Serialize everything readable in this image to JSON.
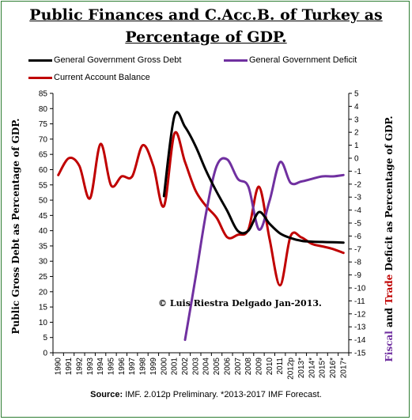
{
  "title_line1": "Public Finances and C.Acc.B. of Turkey as",
  "title_line2": "Percentage of GDP.",
  "ylabel_left": "Public Gross Debt as Percentage of GDP.",
  "ylabel_right": {
    "part1": "Fiscal",
    "part2": " and ",
    "part3": "Trade",
    "part4": " Deficit as Percentage of GDP.",
    "color1": "#7030a0",
    "color3": "#c00000"
  },
  "copyright": "© Luis Riestra Delgado Jan-2013.",
  "source": {
    "label": "Source:",
    "text": " IMF. 2.012p  Preliminary. *2013-2017  IMF Forecast."
  },
  "legend": [
    {
      "label": "General Government Gross Debt",
      "color": "#000000"
    },
    {
      "label": "General Government Deficit",
      "color": "#7030a0"
    },
    {
      "label": "Current Account Balance",
      "color": "#c00000"
    }
  ],
  "chart_data": {
    "type": "line",
    "x": [
      "1990",
      "1991",
      "1992",
      "1993",
      "1994",
      "1995",
      "1996",
      "1997",
      "1998",
      "1999",
      "2000",
      "2001",
      "2002",
      "2003",
      "2004",
      "2005",
      "2006",
      "2007",
      "2008",
      "2009",
      "2010",
      "2011",
      "2012p",
      "2013*",
      "2014*",
      "2015*",
      "2016*",
      "2017*"
    ],
    "y_left": {
      "min": 0,
      "max": 85,
      "step": 5
    },
    "y_right": {
      "min": -15,
      "max": 5,
      "step": 1
    },
    "grid": false,
    "legend_position": "top",
    "series": [
      {
        "name": "General Government Gross Debt",
        "axis": "left",
        "color": "#000000",
        "values": [
          null,
          null,
          null,
          null,
          null,
          null,
          null,
          null,
          null,
          null,
          51.3,
          77.6,
          74,
          67.7,
          59.6,
          52.7,
          46.5,
          39.9,
          40,
          46.1,
          42.3,
          39.1,
          37.6,
          36.7,
          36.4,
          36.3,
          36.2,
          36.1
        ]
      },
      {
        "name": "General Government Deficit",
        "axis": "right",
        "color": "#7030a0",
        "values": [
          null,
          null,
          null,
          null,
          null,
          null,
          null,
          null,
          null,
          null,
          null,
          null,
          -14,
          -9.2,
          -4.2,
          -0.6,
          -0.1,
          -1.6,
          -2.2,
          -5.5,
          -3.3,
          -0.3,
          -1.9,
          -1.8,
          -1.6,
          -1.4,
          -1.4,
          -1.3
        ]
      },
      {
        "name": "Current Account Balance",
        "axis": "right",
        "color": "#c00000",
        "values": [
          -1.3,
          0,
          -0.6,
          -3.1,
          1.1,
          -2.1,
          -1.4,
          -1.4,
          1,
          -0.6,
          -3.7,
          1.9,
          -0.3,
          -2.5,
          -3.7,
          -4.6,
          -6.1,
          -5.9,
          -5.5,
          -2.2,
          -6.2,
          -9.8,
          -6,
          -6.1,
          -6.6,
          -6.8,
          -7,
          -7.3
        ]
      }
    ]
  }
}
